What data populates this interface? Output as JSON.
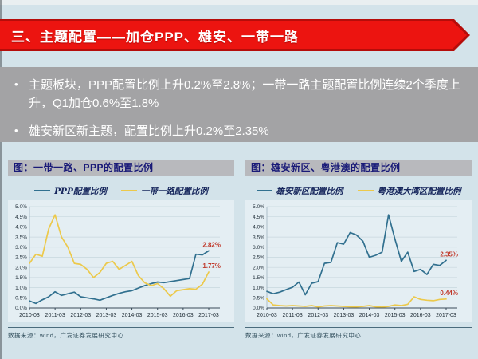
{
  "header": {
    "title": "三、主题配置——加仓PPP、雄安、一带一路"
  },
  "bullets": [
    "主题板块，PPP配置比例上升0.2%至2.8%；一带一路主题配置比例连续2个季度上升，Q1加仓0.6%至1.8%",
    "雄安新区新主题，配置比例上升0.2%至2.35%"
  ],
  "colors": {
    "banner_red": "#ec1410",
    "line_blue": "#31708f",
    "line_yellow": "#ecc94b",
    "end_label_red": "#c0392b"
  },
  "chart_data": [
    {
      "type": "line",
      "title": "图：一带一路、PPP的配置比例",
      "source": "数据来源：wind，广发证券发展研究中心",
      "x": [
        "2010-03",
        "2010-06",
        "2010-09",
        "2010-12",
        "2011-03",
        "2011-06",
        "2011-09",
        "2011-12",
        "2012-03",
        "2012-06",
        "2012-09",
        "2012-12",
        "2013-03",
        "2013-06",
        "2013-09",
        "2013-12",
        "2014-03",
        "2014-06",
        "2014-09",
        "2014-12",
        "2015-03",
        "2015-06",
        "2015-09",
        "2015-12",
        "2016-03",
        "2016-06",
        "2016-09",
        "2016-12",
        "2017-03"
      ],
      "x_tick_labels": [
        "2010-03",
        "2011-03",
        "2012-03",
        "2013-03",
        "2014-03",
        "2015-03",
        "2016-03",
        "2017-03"
      ],
      "ylim": [
        0,
        5
      ],
      "y_ticks": [
        "0.0%",
        "0.5%",
        "1.0%",
        "1.5%",
        "2.0%",
        "2.5%",
        "3.0%",
        "3.5%",
        "4.0%",
        "4.5%",
        "5.0%"
      ],
      "grid": true,
      "legend_position": "top",
      "series": [
        {
          "name": "PPP配置比例",
          "color": "#31708f",
          "end_label": "2.82%",
          "values": [
            0.35,
            0.22,
            0.4,
            0.55,
            0.8,
            0.62,
            0.7,
            0.78,
            0.55,
            0.5,
            0.45,
            0.38,
            0.5,
            0.62,
            0.72,
            0.8,
            0.85,
            0.98,
            1.1,
            1.2,
            1.28,
            1.25,
            1.3,
            1.35,
            1.4,
            1.45,
            2.65,
            2.62,
            2.82
          ]
        },
        {
          "name": "一带一路配置比例",
          "color": "#ecc94b",
          "end_label": "1.77%",
          "values": [
            2.2,
            2.65,
            2.55,
            3.9,
            4.6,
            3.5,
            3.0,
            2.2,
            2.15,
            1.9,
            1.5,
            1.75,
            2.2,
            2.3,
            1.9,
            2.1,
            2.3,
            1.6,
            1.25,
            1.1,
            1.2,
            0.95,
            0.58,
            0.85,
            0.9,
            0.95,
            0.92,
            1.17,
            1.77
          ]
        }
      ]
    },
    {
      "type": "line",
      "title": "图：雄安新区、粤港澳的配置比例",
      "source": "数据来源：wind，广发证券发展研究中心",
      "x": [
        "2010-03",
        "2010-06",
        "2010-09",
        "2010-12",
        "2011-03",
        "2011-06",
        "2011-09",
        "2011-12",
        "2012-03",
        "2012-06",
        "2012-09",
        "2012-12",
        "2013-03",
        "2013-06",
        "2013-09",
        "2013-12",
        "2014-03",
        "2014-06",
        "2014-09",
        "2014-12",
        "2015-03",
        "2015-06",
        "2015-09",
        "2015-12",
        "2016-03",
        "2016-06",
        "2016-09",
        "2016-12",
        "2017-03"
      ],
      "x_tick_labels": [
        "2010-03",
        "2011-03",
        "2012-03",
        "2013-03",
        "2014-03",
        "2015-03",
        "2016-03",
        "2017-03"
      ],
      "ylim": [
        0,
        5
      ],
      "y_ticks": [
        "0.0%",
        "0.5%",
        "1.0%",
        "1.5%",
        "2.0%",
        "2.5%",
        "3.0%",
        "3.5%",
        "4.0%",
        "4.5%",
        "5.0%"
      ],
      "grid": true,
      "legend_position": "top",
      "series": [
        {
          "name": "雄安新区配置比例",
          "color": "#31708f",
          "end_label": "2.35%",
          "values": [
            0.82,
            0.7,
            0.78,
            0.9,
            1.02,
            1.28,
            0.65,
            1.22,
            1.3,
            2.2,
            2.25,
            3.22,
            3.15,
            3.72,
            3.6,
            3.3,
            2.5,
            2.6,
            2.75,
            4.6,
            3.4,
            2.3,
            2.75,
            1.8,
            1.9,
            1.65,
            2.15,
            2.1,
            2.35
          ]
        },
        {
          "name": "粤港澳大湾区配置比例",
          "color": "#ecc94b",
          "end_label": "0.44%",
          "values": [
            0.45,
            0.15,
            0.12,
            0.1,
            0.12,
            0.1,
            0.08,
            0.12,
            0.05,
            0.1,
            0.12,
            0.1,
            0.08,
            0.06,
            0.05,
            0.08,
            0.12,
            0.06,
            0.04,
            0.08,
            0.15,
            0.12,
            0.18,
            0.55,
            0.42,
            0.38,
            0.36,
            0.42,
            0.44
          ]
        }
      ]
    }
  ]
}
